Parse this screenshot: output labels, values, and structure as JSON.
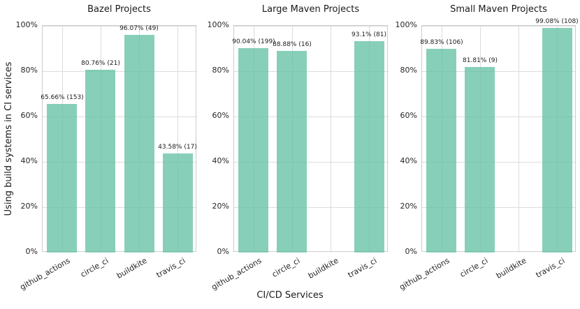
{
  "figure": {
    "background": "#ffffff",
    "text_color": "#262626",
    "grid_color": "#dcdcdc",
    "spine_color": "#cccccc"
  },
  "chart_data": {
    "type": "bar",
    "categories": [
      "github_actions",
      "circle_ci",
      "buildkite",
      "travis_ci"
    ],
    "xlabel": "CI/CD Services",
    "ylabel": "Using build systems in CI services",
    "ylim": [
      0,
      100
    ],
    "yticks": [
      0,
      20,
      40,
      60,
      80,
      100
    ],
    "ytick_labels": [
      "0%",
      "20%",
      "40%",
      "60%",
      "80%",
      "100%"
    ],
    "grid": true,
    "legend": "none",
    "bar_color": "#66c2a5",
    "bar_alpha": 0.78,
    "subplots": [
      {
        "title": "Bazel Projects",
        "values": [
          65.66,
          80.76,
          96.07,
          43.58
        ],
        "counts": [
          153,
          21,
          49,
          17
        ],
        "bar_labels": [
          "65.66% (153)",
          "80.76% (21)",
          "96.07% (49)",
          "43.58% (17)"
        ]
      },
      {
        "title": "Large Maven Projects",
        "values": [
          90.04,
          88.88,
          null,
          93.1
        ],
        "counts": [
          199,
          16,
          null,
          81
        ],
        "bar_labels": [
          "90.04% (199)",
          "88.88% (16)",
          null,
          "93.1% (81)"
        ]
      },
      {
        "title": "Small Maven Projects",
        "values": [
          89.83,
          81.81,
          null,
          99.08
        ],
        "counts": [
          106,
          9,
          null,
          108
        ],
        "bar_labels": [
          "89.83% (106)",
          "81.81% (9)",
          null,
          "99.08% (108)"
        ]
      }
    ]
  }
}
